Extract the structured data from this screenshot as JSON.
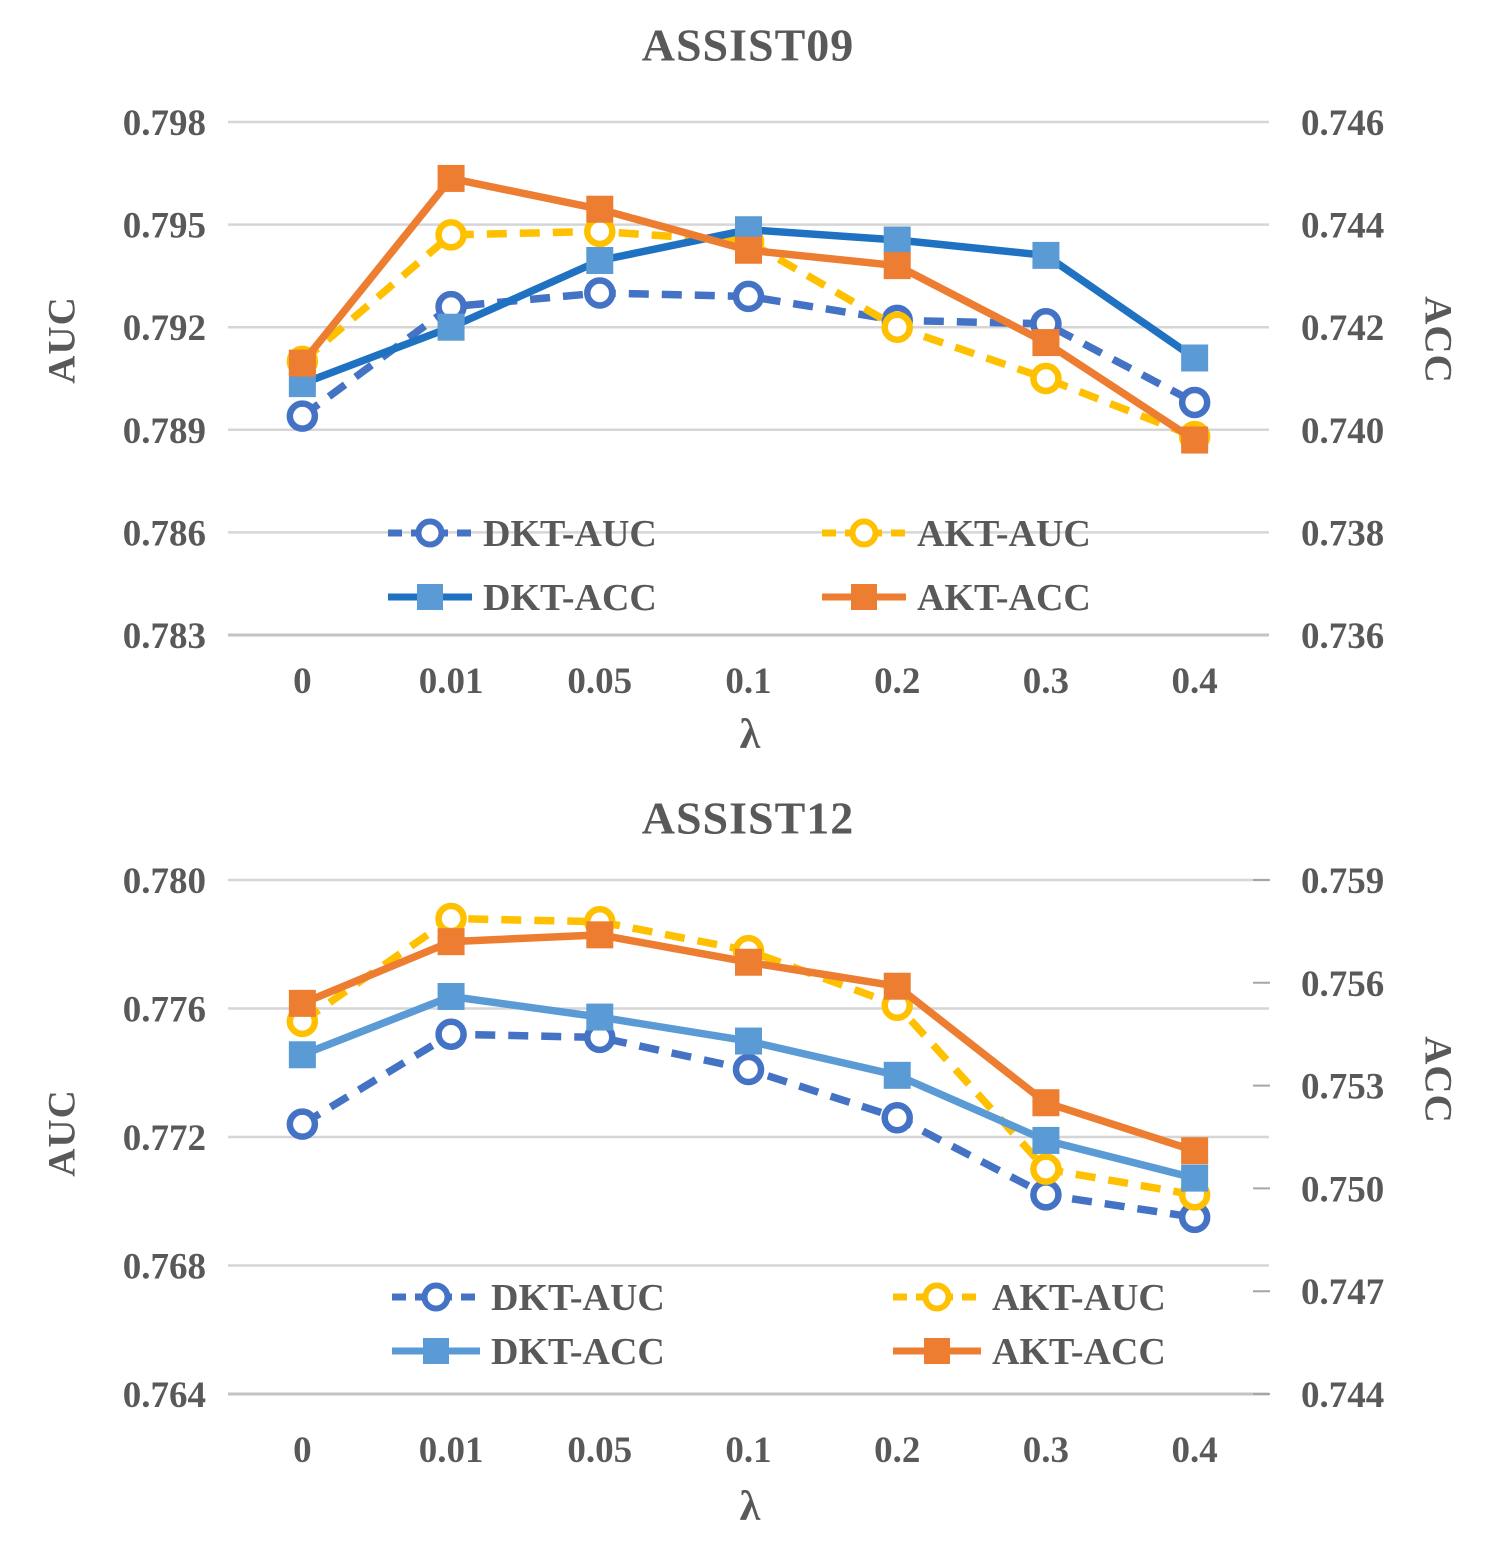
{
  "figure": {
    "background": "#ffffff",
    "text_color": "#595959",
    "grid_color": "#D6D6D6"
  },
  "chart_data": [
    {
      "type": "line",
      "title": "ASSIST09",
      "xlabel": "λ",
      "ylabel_left": "AUC",
      "ylabel_right": "ACC",
      "grid": true,
      "legend_position": "inside-bottom",
      "categories": [
        "0",
        "0.01",
        "0.05",
        "0.1",
        "0.2",
        "0.3",
        "0.4"
      ],
      "left_ylim": [
        0.783,
        0.798
      ],
      "right_ylim": [
        0.736,
        0.746
      ],
      "left_ticks": [
        0.798,
        0.795,
        0.792,
        0.789,
        0.786,
        0.783
      ],
      "right_ticks": [
        0.746,
        0.744,
        0.742,
        0.74,
        0.738,
        0.736
      ],
      "series": [
        {
          "name": "DKT-AUC",
          "axis": "left",
          "style": "dashed",
          "marker": "circle",
          "color": "#4472C4",
          "marker_color": "#4472C4",
          "values": [
            0.7894,
            0.7926,
            0.793,
            0.7929,
            0.7922,
            0.7921,
            0.7898
          ]
        },
        {
          "name": "AKT-AUC",
          "axis": "left",
          "style": "dashed",
          "marker": "circle",
          "color": "#FFC000",
          "marker_color": "#FFC000",
          "values": [
            0.791,
            0.7947,
            0.7948,
            0.7945,
            0.792,
            0.7905,
            0.7888
          ]
        },
        {
          "name": "DKT-ACC",
          "axis": "right",
          "style": "solid",
          "marker": "square",
          "color": "#1F72C2",
          "marker_color": "#5B9BD5",
          "values": [
            0.7409,
            0.742,
            0.7433,
            0.7439,
            0.7437,
            0.7434,
            0.7414
          ]
        },
        {
          "name": "AKT-ACC",
          "axis": "right",
          "style": "solid",
          "marker": "square",
          "color": "#ED7D31",
          "marker_color": "#ED7D31",
          "values": [
            0.7413,
            0.7449,
            0.7443,
            0.7435,
            0.7432,
            0.7417,
            0.7398
          ]
        }
      ]
    },
    {
      "type": "line",
      "title": "ASSIST12",
      "xlabel": "λ",
      "ylabel_left": "AUC",
      "ylabel_right": "ACC",
      "grid": true,
      "legend_position": "inside-bottom",
      "categories": [
        "0",
        "0.01",
        "0.05",
        "0.1",
        "0.2",
        "0.3",
        "0.4"
      ],
      "left_ylim": [
        0.764,
        0.78
      ],
      "right_ylim": [
        0.744,
        0.759
      ],
      "left_ticks": [
        0.78,
        0.776,
        0.772,
        0.768,
        0.764
      ],
      "right_ticks": [
        0.759,
        0.756,
        0.753,
        0.75,
        0.747,
        0.744
      ],
      "series": [
        {
          "name": "DKT-AUC",
          "axis": "left",
          "style": "dashed",
          "marker": "circle",
          "color": "#4472C4",
          "marker_color": "#4472C4",
          "values": [
            0.7724,
            0.7752,
            0.7751,
            0.7741,
            0.7726,
            0.7702,
            0.7695
          ]
        },
        {
          "name": "AKT-AUC",
          "axis": "left",
          "style": "dashed",
          "marker": "circle",
          "color": "#FFC000",
          "marker_color": "#FFC000",
          "values": [
            0.7756,
            0.7788,
            0.7787,
            0.7778,
            0.7761,
            0.771,
            0.7702
          ]
        },
        {
          "name": "DKT-ACC",
          "axis": "right",
          "style": "solid",
          "marker": "square",
          "color": "#5B9BD5",
          "marker_color": "#5B9BD5",
          "values": [
            0.7539,
            0.7556,
            0.755,
            0.7543,
            0.7533,
            0.7514,
            0.7503
          ]
        },
        {
          "name": "AKT-ACC",
          "axis": "right",
          "style": "solid",
          "marker": "square",
          "color": "#ED7D31",
          "marker_color": "#ED7D31",
          "values": [
            0.7554,
            0.7572,
            0.7574,
            0.7566,
            0.7559,
            0.7525,
            0.7511
          ]
        }
      ]
    }
  ]
}
